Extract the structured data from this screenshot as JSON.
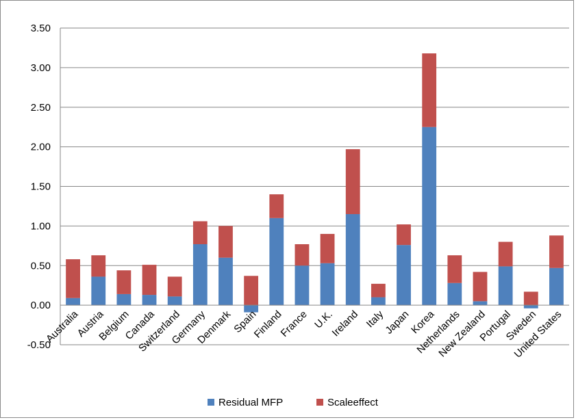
{
  "chart_data": {
    "type": "bar",
    "stacked": true,
    "categories": [
      "Australia",
      "Austria",
      "Belgium",
      "Canada",
      "Switzerland",
      "Germany",
      "Denmark",
      "Spain",
      "Finland",
      "France",
      "U.K.",
      "Ireland",
      "Italy",
      "Japan",
      "Korea",
      "Netherlands",
      "New Zealand",
      "Portugal",
      "Sweden",
      "United States"
    ],
    "series": [
      {
        "name": "Residual MFP",
        "color": "#4f81bd",
        "values": [
          0.09,
          0.36,
          0.14,
          0.13,
          0.11,
          0.77,
          0.6,
          -0.09,
          1.1,
          0.5,
          0.53,
          1.15,
          0.1,
          0.76,
          2.25,
          0.28,
          0.05,
          0.49,
          -0.04,
          0.47
        ]
      },
      {
        "name": "Scaleeffect",
        "color": "#c0504d",
        "values": [
          0.49,
          0.27,
          0.3,
          0.38,
          0.25,
          0.29,
          0.4,
          0.37,
          0.3,
          0.27,
          0.37,
          0.82,
          0.17,
          0.26,
          0.93,
          0.35,
          0.37,
          0.31,
          0.17,
          0.41
        ]
      }
    ],
    "yticks": [
      "3.50",
      "3.00",
      "2.50",
      "2.00",
      "1.50",
      "1.00",
      "0.50",
      "0.00",
      "-0.50"
    ],
    "ylim": [
      -0.5,
      3.5
    ],
    "grid": true,
    "legend_position": "bottom",
    "title": "",
    "xlabel": "",
    "ylabel": ""
  }
}
